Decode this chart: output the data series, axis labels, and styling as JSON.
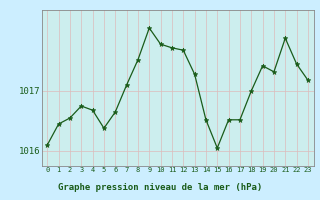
{
  "hours": [
    0,
    1,
    2,
    3,
    4,
    5,
    6,
    7,
    8,
    9,
    10,
    11,
    12,
    13,
    14,
    15,
    16,
    17,
    18,
    19,
    20,
    21,
    22,
    23
  ],
  "pressure": [
    1016.1,
    1016.45,
    1016.55,
    1016.75,
    1016.68,
    1016.38,
    1016.65,
    1017.1,
    1017.52,
    1018.05,
    1017.78,
    1017.72,
    1017.68,
    1017.28,
    1016.52,
    1016.05,
    1016.52,
    1016.52,
    1017.0,
    1017.42,
    1017.32,
    1017.88,
    1017.45,
    1017.18
  ],
  "ylim": [
    1015.75,
    1018.35
  ],
  "yticks": [
    1016,
    1017
  ],
  "ytick_labels": [
    "1016",
    "1017"
  ],
  "line_color": "#1a5c1a",
  "marker_color": "#1a5c1a",
  "bg_color": "#cceeee",
  "grid_color_v": "#ddbbbb",
  "grid_color_h": "#ddbbbb",
  "spine_color": "#888888",
  "xlabel": "Graphe pression niveau de la mer (hPa)",
  "xlabel_color": "#1a5c1a",
  "tick_color": "#1a5c1a",
  "fig_bg": "#cceeff"
}
